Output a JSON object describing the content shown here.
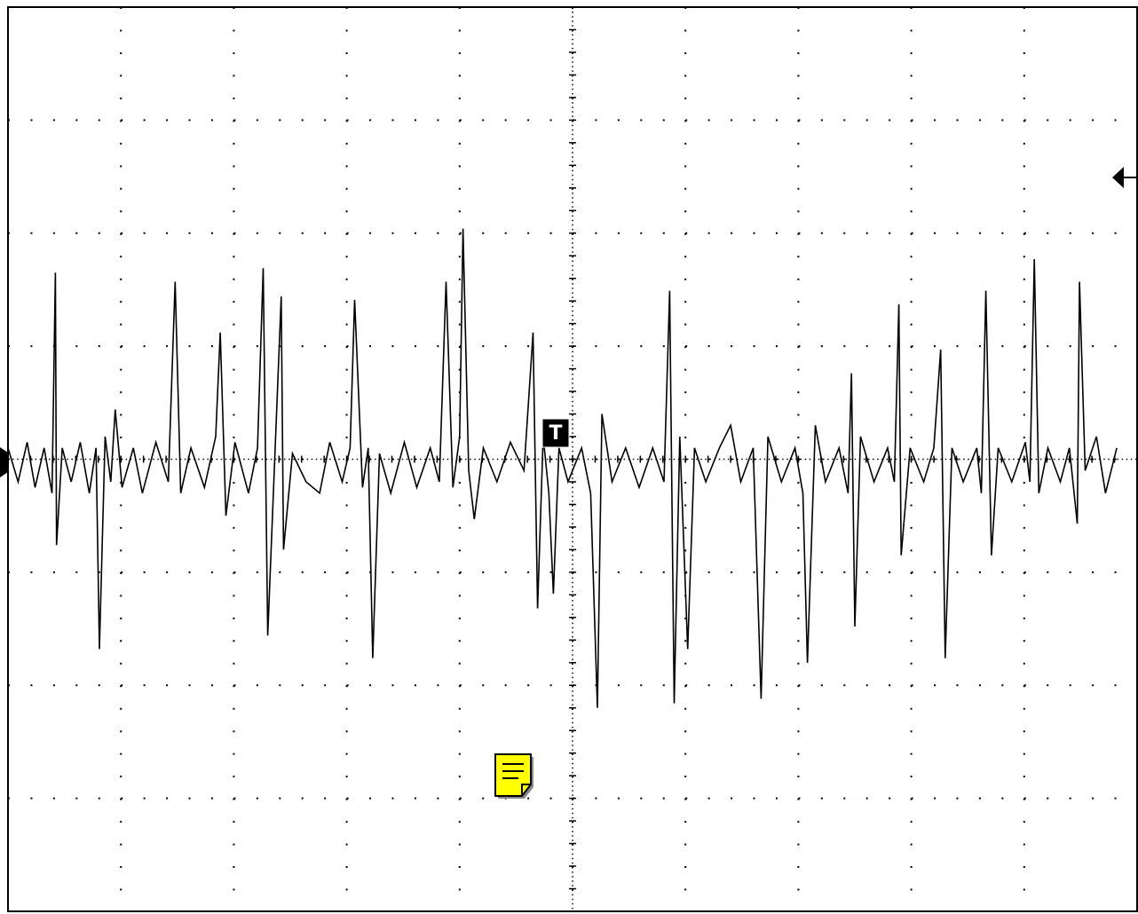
{
  "chart_data": {
    "type": "line",
    "trigger_marker": "T",
    "xlim": [
      0,
      10
    ],
    "xticks": [
      0,
      1,
      2,
      3,
      4,
      5,
      6,
      7,
      8,
      9,
      10
    ],
    "ylim": [
      -4,
      4
    ],
    "yticks": [
      -4,
      -3,
      -2,
      -1,
      0,
      1,
      2,
      3,
      4
    ],
    "grid": true,
    "series": [
      {
        "color": "#000000",
        "x": [
          0,
          0.09,
          0.17,
          0.24,
          0.32,
          0.39,
          0.42,
          0.43,
          0.48,
          0.56,
          0.64,
          0.72,
          0.78,
          0.81,
          0.86,
          0.91,
          0.95,
          1.01,
          1.11,
          1.19,
          1.31,
          1.42,
          1.48,
          1.53,
          1.62,
          1.74,
          1.84,
          1.88,
          1.93,
          2.01,
          2.13,
          2.21,
          2.26,
          2.3,
          2.37,
          2.42,
          2.44,
          2.52,
          2.64,
          2.76,
          2.85,
          2.96,
          3.03,
          3.07,
          3.14,
          3.19,
          3.23,
          3.29,
          3.39,
          3.51,
          3.62,
          3.74,
          3.82,
          3.88,
          3.94,
          4.0,
          4.03,
          4.08,
          4.13,
          4.21,
          4.33,
          4.45,
          4.57,
          4.65,
          4.69,
          4.74,
          4.79,
          4.83,
          4.88,
          4.96,
          5.08,
          5.16,
          5.22,
          5.26,
          5.35,
          5.47,
          5.59,
          5.71,
          5.81,
          5.86,
          5.9,
          5.95,
          6.02,
          6.08,
          6.18,
          6.3,
          6.4,
          6.49,
          6.6,
          6.67,
          6.73,
          6.85,
          6.97,
          7.04,
          7.08,
          7.15,
          7.24,
          7.36,
          7.44,
          7.47,
          7.5,
          7.55,
          7.67,
          7.79,
          7.85,
          7.89,
          7.91,
          7.99,
          8.11,
          8.2,
          8.26,
          8.3,
          8.36,
          8.46,
          8.58,
          8.62,
          8.66,
          8.71,
          8.77,
          8.89,
          9.01,
          9.05,
          9.09,
          9.13,
          9.21,
          9.32,
          9.4,
          9.47,
          9.49,
          9.54,
          9.64,
          9.72,
          9.82
        ],
        "values": [
          0.1,
          -0.2,
          0.15,
          -0.25,
          0.1,
          -0.3,
          1.65,
          -0.76,
          0.1,
          -0.2,
          0.15,
          -0.3,
          0.1,
          -1.68,
          0.2,
          -0.2,
          0.44,
          -0.25,
          0.1,
          -0.3,
          0.15,
          -0.2,
          1.57,
          -0.3,
          0.1,
          -0.25,
          0.2,
          1.12,
          -0.5,
          0.15,
          -0.3,
          0.1,
          1.69,
          -1.56,
          0.2,
          1.44,
          -0.8,
          0.05,
          -0.2,
          -0.3,
          0.15,
          -0.2,
          0.1,
          1.41,
          -0.25,
          0.1,
          -1.76,
          0.05,
          -0.3,
          0.15,
          -0.25,
          0.1,
          -0.2,
          1.57,
          -0.25,
          0.2,
          2.04,
          -0.1,
          -0.53,
          0.1,
          -0.2,
          0.15,
          -0.1,
          1.12,
          -1.32,
          0.2,
          -0.3,
          -1.19,
          0.1,
          -0.2,
          0.1,
          -0.3,
          -2.2,
          0.4,
          -0.2,
          0.1,
          -0.25,
          0.1,
          -0.2,
          1.49,
          -2.16,
          0.2,
          -1.68,
          0.1,
          -0.2,
          0.1,
          0.3,
          -0.2,
          0.1,
          -2.12,
          0.2,
          -0.2,
          0.1,
          -0.3,
          -1.8,
          0.3,
          -0.2,
          0.1,
          -0.3,
          0.76,
          -1.48,
          0.2,
          -0.2,
          0.1,
          -0.2,
          1.37,
          -0.85,
          0.1,
          -0.2,
          0.1,
          0.97,
          -1.76,
          0.1,
          -0.2,
          0.1,
          -0.3,
          1.49,
          -0.85,
          0.1,
          -0.2,
          0.15,
          -0.2,
          1.77,
          -0.3,
          0.1,
          -0.2,
          0.1,
          -0.57,
          1.57,
          -0.1,
          0.2,
          -0.3,
          0.1
        ]
      }
    ]
  }
}
